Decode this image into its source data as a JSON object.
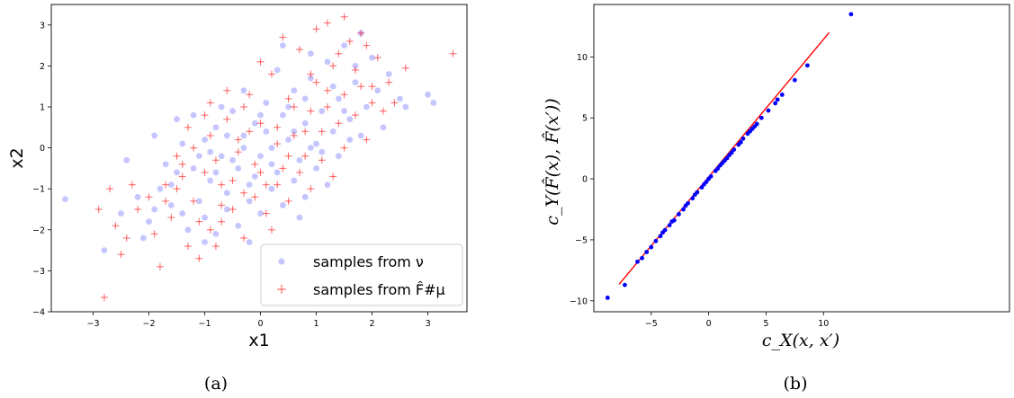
{
  "chart_data": [
    {
      "type": "scatter",
      "panel_caption": "(a)",
      "xlabel": "x1",
      "ylabel": "x2",
      "xlim": [
        -3.75,
        3.7
      ],
      "ylim": [
        -4,
        3.5
      ],
      "xticks": [
        "−3",
        "−2",
        "−1",
        "0",
        "1",
        "2",
        "3"
      ],
      "yticks": [
        "−4",
        "−3",
        "−2",
        "−1",
        "0",
        "1",
        "2",
        "3"
      ],
      "legend_position": "lower right",
      "series": [
        {
          "name": "samples from ν",
          "marker": "circle",
          "color": "#8080ff",
          "points": [
            [
              -3.5,
              -1.25
            ],
            [
              -2.8,
              -2.5
            ],
            [
              3.0,
              1.3
            ],
            [
              3.1,
              1.1
            ],
            [
              2.6,
              1.0
            ],
            [
              -2.4,
              -0.3
            ],
            [
              -1.9,
              0.3
            ],
            [
              -1.7,
              -0.4
            ],
            [
              -1.5,
              0.7
            ],
            [
              -1.4,
              0.1
            ],
            [
              -1.2,
              -0.5
            ],
            [
              -1.1,
              -1.3
            ],
            [
              -1.0,
              0.2
            ],
            [
              -0.9,
              -0.8
            ],
            [
              -0.8,
              0.5
            ],
            [
              -0.7,
              -0.2
            ],
            [
              -0.6,
              -1.1
            ],
            [
              -0.5,
              0.9
            ],
            [
              -0.4,
              -0.5
            ],
            [
              -0.3,
              0.3
            ],
            [
              -0.2,
              -0.9
            ],
            [
              -0.1,
              0.6
            ],
            [
              0.0,
              -0.2
            ],
            [
              0.1,
              1.1
            ],
            [
              0.2,
              0.0
            ],
            [
              0.3,
              -0.6
            ],
            [
              0.4,
              0.8
            ],
            [
              0.5,
              0.2
            ],
            [
              0.6,
              1.4
            ],
            [
              0.7,
              -0.3
            ],
            [
              0.8,
              0.6
            ],
            [
              0.9,
              1.7
            ],
            [
              1.0,
              0.1
            ],
            [
              1.1,
              0.9
            ],
            [
              1.2,
              2.1
            ],
            [
              1.3,
              0.4
            ],
            [
              1.4,
              1.2
            ],
            [
              1.5,
              2.5
            ],
            [
              1.6,
              0.7
            ],
            [
              1.7,
              1.6
            ],
            [
              1.8,
              2.8
            ],
            [
              1.9,
              1.0
            ],
            [
              2.0,
              2.2
            ],
            [
              2.1,
              1.4
            ],
            [
              2.2,
              0.5
            ],
            [
              -2.0,
              -1.8
            ],
            [
              -1.8,
              -1.0
            ],
            [
              -1.6,
              -1.4
            ],
            [
              -1.3,
              -2.0
            ],
            [
              -1.0,
              -1.7
            ],
            [
              -0.8,
              -2.1
            ],
            [
              -0.6,
              -1.5
            ],
            [
              -0.4,
              -1.9
            ],
            [
              -0.2,
              -1.3
            ],
            [
              0.0,
              -1.6
            ],
            [
              0.2,
              -1.0
            ],
            [
              0.4,
              -1.4
            ],
            [
              0.6,
              -0.8
            ],
            [
              0.8,
              -1.2
            ],
            [
              1.0,
              -0.5
            ],
            [
              1.2,
              -0.9
            ],
            [
              1.4,
              -0.2
            ],
            [
              1.6,
              0.2
            ],
            [
              -2.2,
              -1.2
            ],
            [
              -1.5,
              -0.6
            ],
            [
              -0.9,
              -0.1
            ],
            [
              -0.3,
              1.4
            ],
            [
              0.3,
              1.9
            ],
            [
              0.9,
              2.3
            ],
            [
              -0.5,
              -0.3
            ],
            [
              0.1,
              0.4
            ],
            [
              0.5,
              1.0
            ],
            [
              -0.7,
              1.0
            ],
            [
              -1.2,
              0.8
            ],
            [
              -1.6,
              -0.9
            ],
            [
              -0.2,
              -2.3
            ],
            [
              0.7,
              -1.7
            ],
            [
              1.8,
              0.3
            ],
            [
              2.3,
              1.8
            ],
            [
              -2.5,
              -1.6
            ],
            [
              -1.0,
              -2.3
            ],
            [
              0.4,
              2.5
            ],
            [
              1.1,
              -0.1
            ],
            [
              -0.1,
              -0.7
            ],
            [
              0.0,
              0.8
            ],
            [
              -0.3,
              0.0
            ],
            [
              0.6,
              0.4
            ],
            [
              -0.8,
              -0.6
            ],
            [
              1.3,
              1.5
            ],
            [
              -1.4,
              -1.6
            ],
            [
              2.5,
              1.2
            ],
            [
              -0.6,
              0.3
            ],
            [
              0.2,
              -0.4
            ],
            [
              0.8,
              1.2
            ],
            [
              1.5,
              0.9
            ],
            [
              -1.1,
              -0.2
            ],
            [
              -1.9,
              -1.5
            ],
            [
              -2.1,
              -2.2
            ],
            [
              0.9,
              0.0
            ],
            [
              1.7,
              2.0
            ]
          ]
        },
        {
          "name": "samples from F̂#μ",
          "marker": "plus",
          "color": "#ff0000",
          "points": [
            [
              -2.8,
              -3.65
            ],
            [
              -2.9,
              -1.5
            ],
            [
              -2.7,
              -1.0
            ],
            [
              -2.6,
              -1.9
            ],
            [
              -2.4,
              -2.2
            ],
            [
              -2.2,
              -1.5
            ],
            [
              3.45,
              2.3
            ],
            [
              2.6,
              1.95
            ],
            [
              2.3,
              1.6
            ],
            [
              2.1,
              2.2
            ],
            [
              1.5,
              3.2
            ],
            [
              1.2,
              3.05
            ],
            [
              1.9,
              2.5
            ],
            [
              2.4,
              1.1
            ],
            [
              -1.8,
              -2.9
            ],
            [
              -1.7,
              -0.9
            ],
            [
              -1.5,
              -0.2
            ],
            [
              -1.3,
              0.5
            ],
            [
              -1.2,
              -1.3
            ],
            [
              -1.1,
              -2.7
            ],
            [
              -1.0,
              -0.6
            ],
            [
              -0.9,
              1.1
            ],
            [
              -0.8,
              -0.3
            ],
            [
              -0.7,
              -1.4
            ],
            [
              -0.6,
              0.7
            ],
            [
              -0.5,
              -0.8
            ],
            [
              -0.4,
              0.2
            ],
            [
              -0.3,
              -1.1
            ],
            [
              -0.2,
              1.3
            ],
            [
              -0.1,
              -0.4
            ],
            [
              0.0,
              0.6
            ],
            [
              0.1,
              -0.9
            ],
            [
              0.2,
              1.8
            ],
            [
              0.3,
              0.1
            ],
            [
              0.4,
              -0.5
            ],
            [
              0.5,
              1.2
            ],
            [
              0.6,
              0.3
            ],
            [
              0.7,
              2.4
            ],
            [
              0.8,
              -0.2
            ],
            [
              0.9,
              0.9
            ],
            [
              1.0,
              1.6
            ],
            [
              1.1,
              0.4
            ],
            [
              1.2,
              1.0
            ],
            [
              1.3,
              2.0
            ],
            [
              1.4,
              0.6
            ],
            [
              1.5,
              1.3
            ],
            [
              1.6,
              2.6
            ],
            [
              1.7,
              0.8
            ],
            [
              1.8,
              1.5
            ],
            [
              1.9,
              0.2
            ],
            [
              2.0,
              1.1
            ],
            [
              -1.9,
              -2.1
            ],
            [
              -1.6,
              -1.7
            ],
            [
              -1.4,
              -0.7
            ],
            [
              -1.2,
              0.0
            ],
            [
              -0.9,
              -2.0
            ],
            [
              -0.7,
              -1.8
            ],
            [
              -0.5,
              -1.5
            ],
            [
              -0.3,
              -2.2
            ],
            [
              -0.1,
              -1.2
            ],
            [
              0.1,
              -1.6
            ],
            [
              0.3,
              -0.9
            ],
            [
              0.5,
              -1.3
            ],
            [
              0.7,
              -0.6
            ],
            [
              0.9,
              -1.0
            ],
            [
              1.1,
              -0.3
            ],
            [
              1.3,
              -0.7
            ],
            [
              1.5,
              0.0
            ],
            [
              -2.3,
              -0.9
            ],
            [
              -2.0,
              -1.2
            ],
            [
              -1.5,
              -1.0
            ],
            [
              -1.0,
              0.8
            ],
            [
              -0.6,
              1.4
            ],
            [
              0.0,
              2.1
            ],
            [
              0.4,
              2.7
            ],
            [
              1.0,
              2.9
            ],
            [
              -0.8,
              -2.4
            ],
            [
              0.2,
              -2.0
            ],
            [
              0.6,
              1.0
            ],
            [
              -0.2,
              0.4
            ],
            [
              -1.3,
              -2.4
            ],
            [
              1.7,
              1.9
            ],
            [
              2.2,
              0.9
            ],
            [
              -0.4,
              -0.1
            ],
            [
              0.8,
              0.4
            ],
            [
              -1.7,
              -1.3
            ],
            [
              0.0,
              -0.6
            ],
            [
              1.2,
              1.4
            ],
            [
              -0.9,
              0.3
            ],
            [
              0.5,
              -0.2
            ],
            [
              -1.1,
              -1.8
            ],
            [
              1.4,
              2.3
            ],
            [
              -2.5,
              -2.6
            ],
            [
              -0.3,
              1.0
            ],
            [
              0.3,
              0.5
            ],
            [
              -0.7,
              -0.9
            ],
            [
              1.8,
              2.8
            ],
            [
              2.0,
              1.5
            ],
            [
              -1.4,
              -0.4
            ],
            [
              0.9,
              1.8
            ]
          ]
        }
      ]
    },
    {
      "type": "scatter",
      "panel_caption": "(b)",
      "xlabel": "c_X(x, x′)",
      "ylabel": "c_Y(F̂(x), F̂(x′))",
      "xlim": [
        -10,
        26.2
      ],
      "ylim": [
        -10.9,
        14.3
      ],
      "xticks": [
        "−5",
        "0",
        "5",
        "10"
      ],
      "yticks": [
        "−10",
        "−5",
        "0",
        "5",
        "10"
      ],
      "series": [
        {
          "name": "",
          "marker": "circle",
          "color": "#0000ff",
          "points": [
            [
              -8.8,
              -9.75
            ],
            [
              -7.3,
              -8.7
            ],
            [
              -5.8,
              -6.5
            ],
            [
              -5.4,
              -6.0
            ],
            [
              -5.0,
              -5.6
            ],
            [
              -4.6,
              -5.1
            ],
            [
              -4.2,
              -4.7
            ],
            [
              -3.8,
              -4.2
            ],
            [
              -3.4,
              -3.8
            ],
            [
              -3.0,
              -3.4
            ],
            [
              -2.6,
              -2.9
            ],
            [
              -2.2,
              -2.5
            ],
            [
              -1.8,
              -2.0
            ],
            [
              -1.4,
              -1.6
            ],
            [
              -1.0,
              -1.1
            ],
            [
              -0.6,
              -0.7
            ],
            [
              -0.2,
              -0.25
            ],
            [
              0.2,
              0.2
            ],
            [
              0.6,
              0.65
            ],
            [
              1.0,
              1.1
            ],
            [
              1.4,
              1.5
            ],
            [
              1.8,
              1.95
            ],
            [
              2.2,
              2.4
            ],
            [
              2.6,
              2.8
            ],
            [
              3.0,
              3.3
            ],
            [
              3.4,
              3.7
            ],
            [
              3.8,
              4.1
            ],
            [
              4.2,
              4.5
            ],
            [
              4.6,
              5.0
            ],
            [
              5.2,
              5.6
            ],
            [
              5.8,
              6.2
            ],
            [
              6.4,
              6.9
            ],
            [
              7.5,
              8.1
            ],
            [
              8.6,
              9.3
            ],
            [
              12.4,
              13.5
            ],
            [
              -6.2,
              -6.8
            ],
            [
              -4.0,
              -4.4
            ],
            [
              -2.0,
              -2.2
            ],
            [
              0.0,
              0.0
            ],
            [
              2.0,
              2.15
            ],
            [
              4.0,
              4.3
            ],
            [
              6.0,
              6.5
            ],
            [
              -3.2,
              -3.5
            ],
            [
              1.6,
              1.7
            ],
            [
              3.6,
              3.9
            ],
            [
              -1.2,
              -1.3
            ],
            [
              0.8,
              0.85
            ],
            [
              2.8,
              3.0
            ],
            [
              -0.4,
              -0.45
            ],
            [
              1.2,
              1.3
            ]
          ]
        }
      ],
      "reference_line": {
        "color": "#ff0000",
        "x": [
          -7.8,
          10.5
        ],
        "y": [
          -8.65,
          12.0
        ]
      }
    }
  ]
}
